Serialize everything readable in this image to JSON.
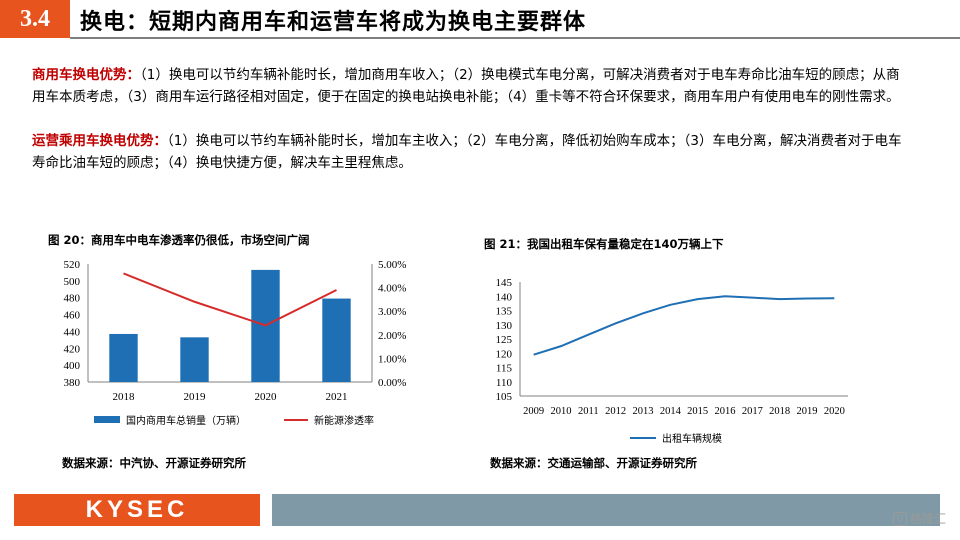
{
  "header": {
    "section": "3.4",
    "title": "换电：短期内商用车和运营车将成为换电主要群体"
  },
  "paragraphs": [
    {
      "lead": "商用车换电优势：",
      "body": "（1）换电可以节约车辆补能时长，增加商用车收入；（2）换电模式车电分离，可解决消费者对于电车寿命比油车短的顾虑；从商用车本质考虑，（3）商用车运行路径相对固定，便于在固定的换电站换电补能；（4）重卡等不符合环保要求，商用车用户有使用电车的刚性需求。"
    },
    {
      "lead": "运营乘用车换电优势：",
      "body": "（1）换电可以节约车辆补能时长，增加车主收入；（2）车电分离，降低初始购车成本；（3）车电分离，解决消费者对于电车寿命比油车短的顾虑；（4）换电快捷方便，解决车主里程焦虑。"
    }
  ],
  "figures": {
    "fig20": {
      "title": "图 20：商用车中电车渗透率仍很低，市场空间广阔",
      "source": "数据来源：中汽协、开源证券研究所"
    },
    "fig21": {
      "title": "图 21：我国出租车保有量稳定在140万辆上下",
      "source": "数据来源：交通运输部、开源证券研究所"
    }
  },
  "chart_data": [
    {
      "type": "bar",
      "categories": [
        "2018",
        "2019",
        "2020",
        "2021"
      ],
      "series": [
        {
          "name": "国内商用车总销量（万辆）",
          "type": "bar",
          "axis": "left",
          "color": "#1f6fb5",
          "values": [
            437,
            433,
            513,
            479
          ]
        },
        {
          "name": "新能源渗透率",
          "type": "line",
          "axis": "right",
          "color": "#d62b2b",
          "values": [
            0.046,
            0.034,
            0.024,
            0.039
          ]
        }
      ],
      "ylim": [
        380,
        520
      ],
      "yticks": [
        "520",
        "500",
        "480",
        "460",
        "440",
        "420",
        "400",
        "380"
      ],
      "y2lim": [
        0,
        0.05
      ],
      "y2ticks": [
        "5.00%",
        "4.00%",
        "3.00%",
        "2.00%",
        "1.00%",
        "0.00%"
      ],
      "legend": "bottom"
    },
    {
      "type": "line",
      "categories": [
        "2009",
        "2010",
        "2011",
        "2012",
        "2013",
        "2014",
        "2015",
        "2016",
        "2017",
        "2018",
        "2019",
        "2020"
      ],
      "series": [
        {
          "name": "出租车辆规模",
          "color": "#1f6fb5",
          "values": [
            119.5,
            122.5,
            126.5,
            130.5,
            134,
            137,
            139,
            140,
            139.5,
            139,
            139.2,
            139.3
          ]
        }
      ],
      "ylim": [
        105,
        145
      ],
      "yticks": [
        "145",
        "140",
        "135",
        "130",
        "125",
        "120",
        "115",
        "110",
        "105"
      ],
      "legend": "bottom"
    }
  ],
  "footer": {
    "logo": "KYSEC",
    "watermark": "格隆汇",
    "watermark_icon": "G"
  }
}
